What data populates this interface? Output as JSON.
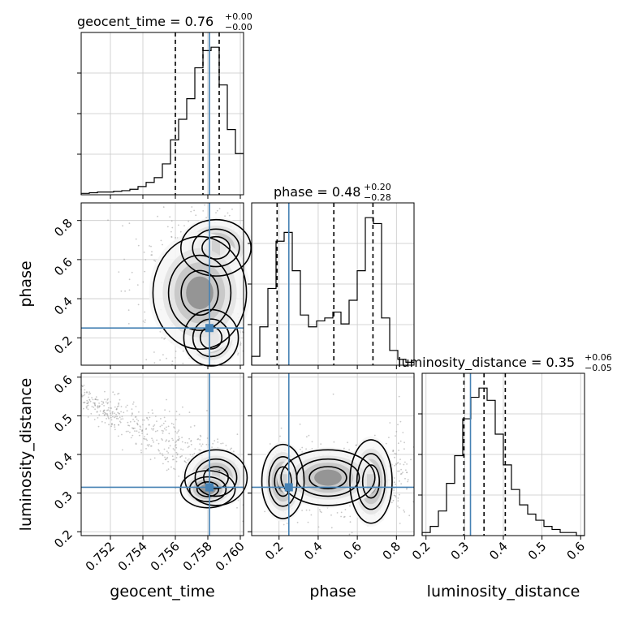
{
  "chart_data": {
    "type": "corner",
    "parameters": [
      "geocent_time",
      "phase",
      "luminosity_distance"
    ],
    "axis_labels": {
      "x": [
        "geocent_time",
        "phase",
        "luminosity_distance"
      ],
      "y": [
        "phase",
        "luminosity_distance"
      ]
    },
    "titles": [
      {
        "name": "geocent_time",
        "value": "0.76",
        "plus": "+0.00",
        "minus": "−0.00"
      },
      {
        "name": "phase",
        "value": "0.48",
        "plus": "+0.20",
        "minus": "−0.28"
      },
      {
        "name": "luminosity_distance",
        "value": "0.35",
        "plus": "+0.06",
        "minus": "−0.05"
      }
    ],
    "truths": {
      "geocent_time": 0.7581,
      "phase": 0.25,
      "luminosity_distance": 0.315
    },
    "quantiles": {
      "geocent_time": [
        0.756,
        0.7577,
        0.7587
      ],
      "phase": [
        0.19,
        0.48,
        0.68
      ],
      "luminosity_distance": [
        0.298,
        0.35,
        0.405
      ]
    },
    "ranges": {
      "geocent_time": [
        0.7502,
        0.7602
      ],
      "phase": [
        0.06,
        0.89
      ],
      "luminosity_distance": [
        0.19,
        0.61
      ]
    },
    "ticks": {
      "geocent_time": [
        "0.752",
        "0.754",
        "0.756",
        "0.758",
        "0.760"
      ],
      "phase": [
        "0.2",
        "0.4",
        "0.6",
        "0.8"
      ],
      "luminosity_distance": [
        "0.2",
        "0.3",
        "0.4",
        "0.5",
        "0.6"
      ]
    },
    "histograms": {
      "geocent_time": {
        "edges": [
          0.7502,
          0.7507,
          0.7512,
          0.7517,
          0.7522,
          0.7527,
          0.7532,
          0.7537,
          0.7542,
          0.7547,
          0.7552,
          0.7557,
          0.7562,
          0.7567,
          0.7572,
          0.7577,
          0.7582,
          0.7587,
          0.7592,
          0.7597,
          0.7602
        ],
        "counts": [
          2,
          3,
          4,
          4,
          5,
          6,
          8,
          12,
          18,
          25,
          45,
          80,
          110,
          140,
          185,
          210,
          215,
          160,
          95,
          60
        ]
      },
      "phase": {
        "edges": [
          0.06,
          0.1015,
          0.143,
          0.1845,
          0.226,
          0.2675,
          0.309,
          0.3505,
          0.392,
          0.4335,
          0.475,
          0.5165,
          0.558,
          0.5995,
          0.641,
          0.6825,
          0.724,
          0.7655,
          0.807,
          0.8485,
          0.89
        ],
        "counts": [
          3,
          13,
          26,
          42,
          45,
          32,
          17,
          13,
          15,
          16,
          18,
          14,
          22,
          32,
          50,
          48,
          16,
          5,
          2,
          1
        ]
      },
      "luminosity_distance": {
        "edges": [
          0.19,
          0.211,
          0.232,
          0.253,
          0.274,
          0.295,
          0.316,
          0.337,
          0.358,
          0.379,
          0.4,
          0.421,
          0.442,
          0.463,
          0.484,
          0.505,
          0.526,
          0.547,
          0.568,
          0.589,
          0.61
        ],
        "counts": [
          1,
          3,
          8,
          17,
          26,
          38,
          45,
          48,
          44,
          33,
          23,
          15,
          10,
          7,
          5,
          3,
          2,
          1,
          1,
          0
        ]
      }
    },
    "grid": true
  }
}
